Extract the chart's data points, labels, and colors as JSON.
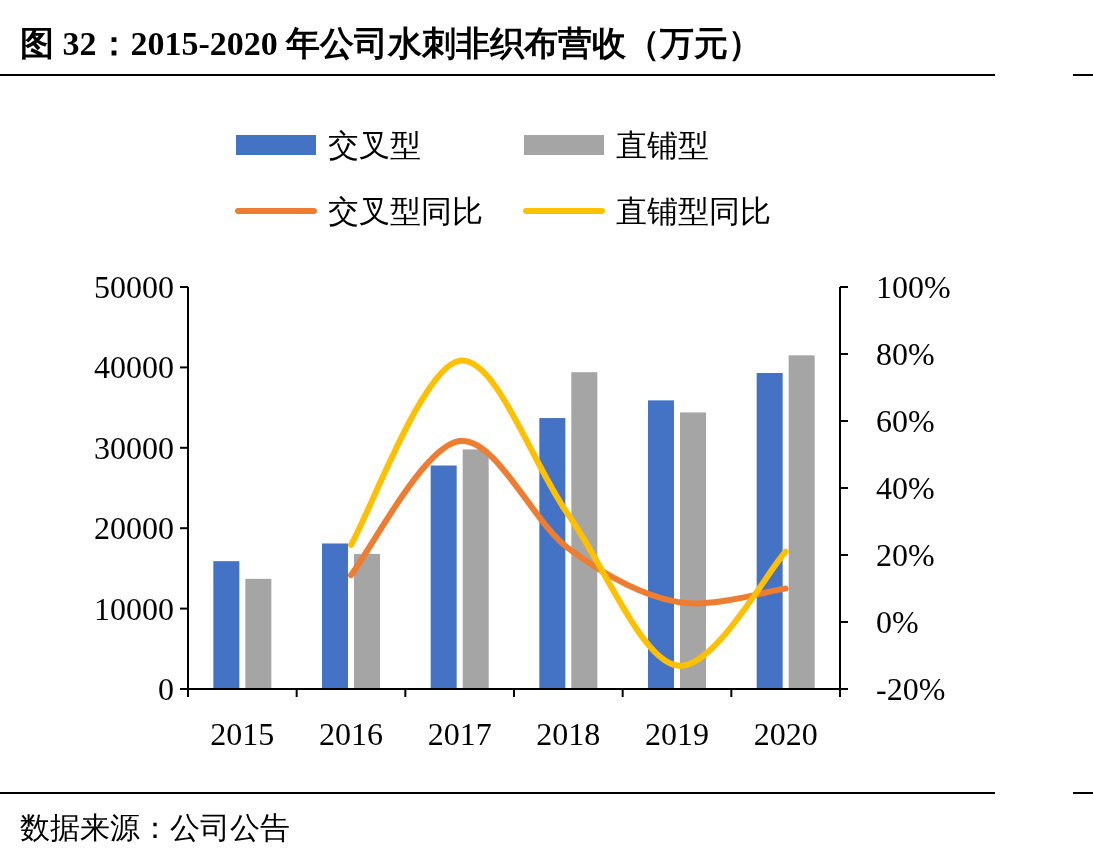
{
  "chart_data": {
    "type": "bar",
    "title": "图 32：2015-2020 年公司水刺非织布营收（万元）",
    "categories": [
      "2015",
      "2016",
      "2017",
      "2018",
      "2019",
      "2020"
    ],
    "series": [
      {
        "name": "交叉型",
        "color": "#4472c4",
        "values": [
          15900,
          18100,
          27800,
          33700,
          35900,
          39300
        ]
      },
      {
        "name": "直铺型",
        "color": "#a5a5a5",
        "values": [
          13700,
          16800,
          29800,
          39400,
          34400,
          41500
        ]
      },
      {
        "name": "交叉型同比",
        "type": "line",
        "axis": "y2",
        "color": "#ed7d31",
        "values": [
          null,
          14,
          54,
          22,
          6,
          10
        ]
      },
      {
        "name": "直铺型同比",
        "type": "line",
        "axis": "y2",
        "color": "#ffc000",
        "values": [
          null,
          23,
          78,
          32,
          -13,
          21
        ]
      }
    ],
    "ylim": [
      0,
      50000
    ],
    "yticks": [
      0,
      10000,
      20000,
      30000,
      40000,
      50000
    ],
    "y2lim": [
      -20,
      100
    ],
    "y2ticks": [
      {
        "value": -20,
        "label": "-20%"
      },
      {
        "value": 0,
        "label": "0%"
      },
      {
        "value": 20,
        "label": "20%"
      },
      {
        "value": 40,
        "label": "40%"
      },
      {
        "value": 60,
        "label": "60%"
      },
      {
        "value": 80,
        "label": "80%"
      },
      {
        "value": 100,
        "label": "100%"
      }
    ],
    "legend": "top",
    "annotations": [
      "数据来源：公司公告"
    ]
  }
}
